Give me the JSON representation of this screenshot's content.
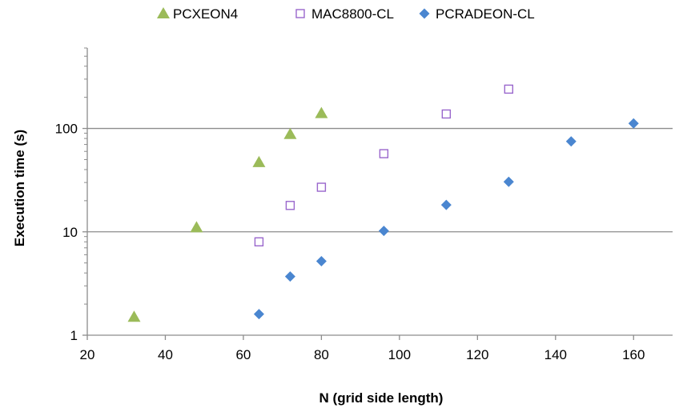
{
  "chart_data": {
    "type": "scatter",
    "title": "",
    "xlabel": "N (grid side length)",
    "ylabel": "Execution time (s)",
    "xlim": [
      20,
      170
    ],
    "ylim": [
      1,
      600
    ],
    "yscale": "log",
    "xticks": [
      20,
      40,
      60,
      80,
      100,
      120,
      140,
      160
    ],
    "yticks": [
      1,
      10,
      100
    ],
    "grid": "horizontal",
    "legend": "top",
    "series": [
      {
        "name": "PCXEON4",
        "marker": "triangle-filled",
        "color": "#9bbb59",
        "x": [
          32,
          48,
          64,
          72,
          80
        ],
        "y": [
          1.5,
          11,
          47,
          88,
          140
        ]
      },
      {
        "name": "MAC8800-CL",
        "marker": "square-open",
        "color": "#9966cc",
        "x": [
          64,
          72,
          80,
          96,
          112,
          128
        ],
        "y": [
          8,
          18,
          27,
          57,
          138,
          240
        ]
      },
      {
        "name": "PCRADEON-CL",
        "marker": "diamond-filled",
        "color": "#4a86d0",
        "x": [
          64,
          72,
          80,
          96,
          112,
          128,
          144,
          160
        ],
        "y": [
          1.6,
          3.7,
          5.2,
          10.2,
          18.2,
          30.5,
          75,
          112
        ]
      }
    ]
  }
}
